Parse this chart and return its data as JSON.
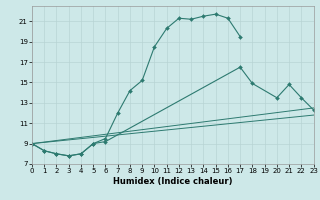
{
  "xlabel": "Humidex (Indice chaleur)",
  "bg_color": "#cde8e8",
  "grid_color": "#b8d4d4",
  "line_color": "#2d7a70",
  "xlim": [
    0,
    23
  ],
  "ylim": [
    7,
    22.5
  ],
  "yticks": [
    7,
    9,
    11,
    13,
    15,
    17,
    19,
    21
  ],
  "xticks": [
    0,
    1,
    2,
    3,
    4,
    5,
    6,
    7,
    8,
    9,
    10,
    11,
    12,
    13,
    14,
    15,
    16,
    17,
    18,
    19,
    20,
    21,
    22,
    23
  ],
  "curve1_x": [
    0,
    1,
    2,
    3,
    4,
    5,
    6,
    7,
    8,
    9,
    10,
    11,
    12,
    13,
    14,
    15,
    16,
    17
  ],
  "curve1_y": [
    9.0,
    8.3,
    8.0,
    7.8,
    8.0,
    9.0,
    9.5,
    12.0,
    14.2,
    15.2,
    18.5,
    20.3,
    21.3,
    21.2,
    21.5,
    21.7,
    21.3,
    19.5
  ],
  "curve2_x": [
    0,
    1,
    2,
    3,
    4,
    5,
    6,
    17,
    18,
    20,
    21,
    22,
    23
  ],
  "curve2_y": [
    9.0,
    8.3,
    8.0,
    7.8,
    8.0,
    9.0,
    9.2,
    16.5,
    14.9,
    13.5,
    14.8,
    13.5,
    12.3
  ],
  "line3_x": [
    0,
    23
  ],
  "line3_y": [
    9.0,
    11.8
  ],
  "line4_x": [
    0,
    23
  ],
  "line4_y": [
    9.0,
    12.5
  ]
}
